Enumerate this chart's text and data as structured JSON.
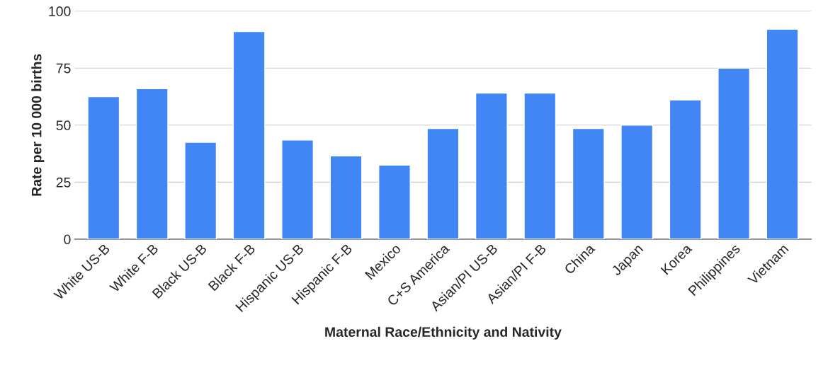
{
  "chart_data": {
    "type": "bar",
    "xlabel": "Maternal Race/Ethnicity and Nativity",
    "ylabel": "Rate per 10 000 births",
    "categories": [
      "White US-B",
      "White F-B",
      "Black US-B",
      "Black F-B",
      "Hispanic US-B",
      "Hispanic F-B",
      "Mexico",
      "C+S America",
      "Asian/PI US-B",
      "Asian/PI F-B",
      "China",
      "Japan",
      "Korea",
      "Philippines",
      "Vietnam"
    ],
    "values": [
      62.5,
      66,
      42.5,
      91,
      43.5,
      36.5,
      32.5,
      48.5,
      64,
      64,
      48.5,
      50,
      61,
      75,
      92
    ],
    "color": "#4285f4",
    "ylim": [
      0,
      100
    ],
    "yticks": [
      0,
      25,
      50,
      75,
      100
    ],
    "grid": "y",
    "legend": false
  }
}
